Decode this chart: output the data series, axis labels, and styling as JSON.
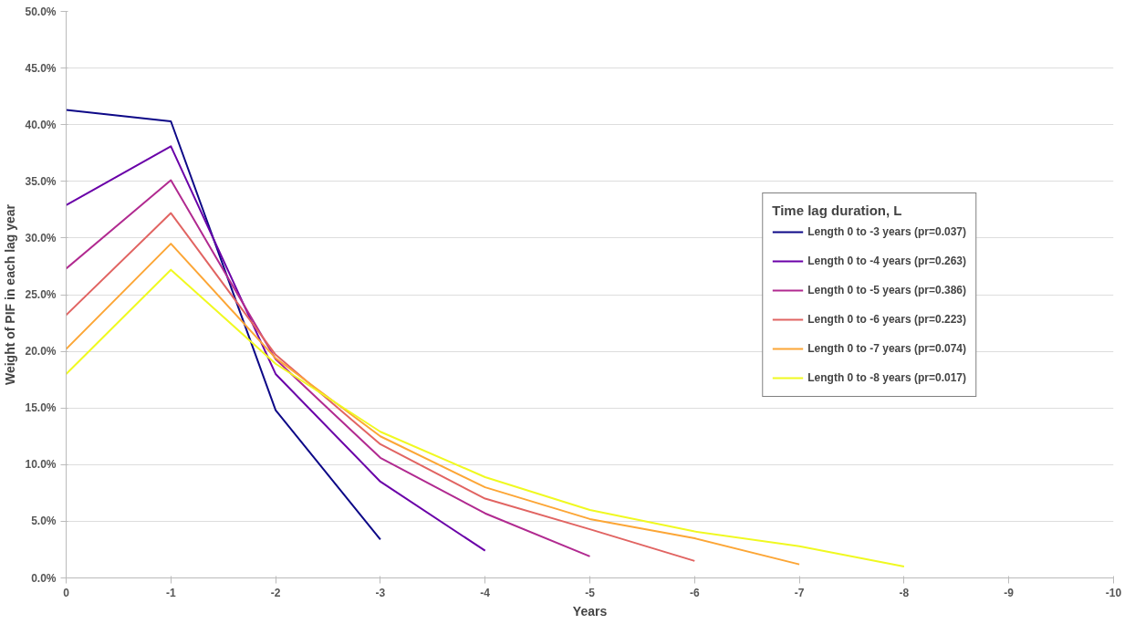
{
  "chart_data": {
    "type": "line",
    "xlabel": "Years",
    "ylabel": "Weight of PIF in each lag year",
    "legend_title": "Time lag duration, L",
    "x": [
      0,
      -1,
      -2,
      -3,
      -4,
      -5,
      -6,
      -7,
      -8
    ],
    "series": [
      {
        "name": "Length 0 to -3 years (pr=0.037)",
        "color": "#0d0887",
        "values": [
          41.3,
          40.3,
          14.8,
          3.4,
          null,
          null,
          null,
          null,
          null
        ]
      },
      {
        "name": "Length 0 to -4 years (pr=0.263)",
        "color": "#6a00a8",
        "values": [
          32.9,
          38.1,
          18.0,
          8.5,
          2.4,
          null,
          null,
          null,
          null
        ]
      },
      {
        "name": "Length 0 to -5 years (pr=0.386)",
        "color": "#b12a90",
        "values": [
          27.3,
          35.1,
          19.3,
          10.6,
          5.7,
          1.9,
          null,
          null,
          null
        ]
      },
      {
        "name": "Length 0 to -6 years (pr=0.223)",
        "color": "#e16462",
        "values": [
          23.2,
          32.2,
          19.7,
          11.8,
          7.0,
          4.3,
          1.5,
          null,
          null
        ]
      },
      {
        "name": "Length 0 to -7 years (pr=0.074)",
        "color": "#fca636",
        "values": [
          20.2,
          29.5,
          19.4,
          12.5,
          8.0,
          5.2,
          3.5,
          1.2,
          null
        ]
      },
      {
        "name": "Length 0 to -8 years (pr=0.017)",
        "color": "#f0f921",
        "values": [
          18.0,
          27.2,
          18.9,
          12.9,
          8.9,
          6.0,
          4.1,
          2.8,
          1.0
        ]
      }
    ],
    "xlim": [
      0,
      -10
    ],
    "xticks": [
      0,
      -1,
      -2,
      -3,
      -4,
      -5,
      -6,
      -7,
      -8,
      -9,
      -10
    ],
    "ylim": [
      0,
      50
    ],
    "yticks": [
      {
        "value": 0,
        "label": "0.0%"
      },
      {
        "value": 5,
        "label": "5.0%"
      },
      {
        "value": 10,
        "label": "10.0%"
      },
      {
        "value": 15,
        "label": "15.0%"
      },
      {
        "value": 20,
        "label": "20.0%"
      },
      {
        "value": 25,
        "label": "25.0%"
      },
      {
        "value": 30,
        "label": "30.0%"
      },
      {
        "value": 35,
        "label": "35.0%"
      },
      {
        "value": 40,
        "label": "40.0%"
      },
      {
        "value": 45,
        "label": "45.0%"
      },
      {
        "value": 50,
        "label": "50.0%"
      }
    ],
    "grid": "y",
    "legend": "right",
    "marker": "none",
    "line_style": "solid"
  }
}
